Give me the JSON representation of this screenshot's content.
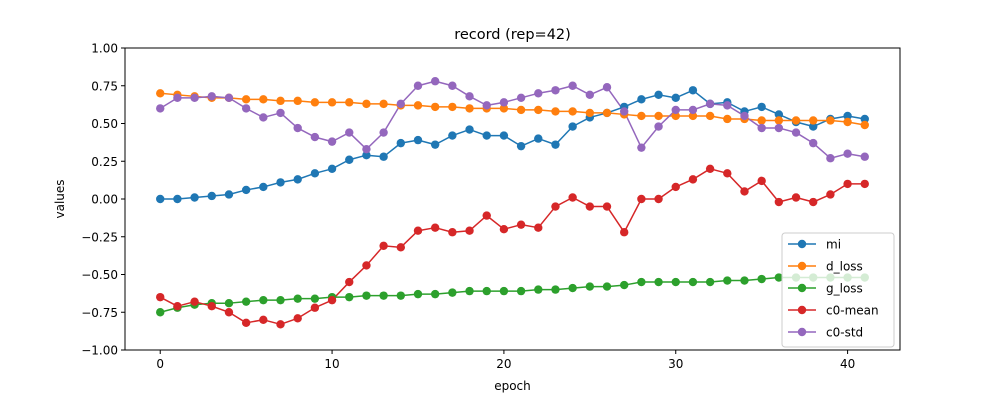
{
  "chart_data": {
    "type": "line",
    "title": "record (rep=42)",
    "xlabel": "epoch",
    "ylabel": "values",
    "xlim": [
      -2.05,
      43.05
    ],
    "ylim": [
      -1.0,
      1.0
    ],
    "xticks": [
      0,
      10,
      20,
      30,
      40
    ],
    "yticks": [
      -1.0,
      -0.75,
      -0.5,
      -0.25,
      0.0,
      0.25,
      0.5,
      0.75,
      1.0
    ],
    "ytick_labels": [
      "−1.00",
      "−0.75",
      "−0.50",
      "−0.25",
      "0.00",
      "0.25",
      "0.50",
      "0.75",
      "1.00"
    ],
    "xtick_labels": [
      "0",
      "10",
      "20",
      "30",
      "40"
    ],
    "grid": false,
    "legend_position": "lower-right",
    "x": [
      0,
      1,
      2,
      3,
      4,
      5,
      6,
      7,
      8,
      9,
      10,
      11,
      12,
      13,
      14,
      15,
      16,
      17,
      18,
      19,
      20,
      21,
      22,
      23,
      24,
      25,
      26,
      27,
      28,
      29,
      30,
      31,
      32,
      33,
      34,
      35,
      36,
      37,
      38,
      39,
      40,
      41
    ],
    "series": [
      {
        "name": "mi",
        "color": "#1f77b4",
        "values": [
          0.0,
          0.0,
          0.01,
          0.02,
          0.03,
          0.06,
          0.08,
          0.11,
          0.13,
          0.17,
          0.2,
          0.26,
          0.29,
          0.28,
          0.37,
          0.39,
          0.36,
          0.42,
          0.46,
          0.42,
          0.42,
          0.35,
          0.4,
          0.36,
          0.48,
          0.54,
          0.57,
          0.61,
          0.66,
          0.69,
          0.67,
          0.72,
          0.63,
          0.64,
          0.58,
          0.61,
          0.56,
          0.51,
          0.48,
          0.53,
          0.55,
          0.53
        ]
      },
      {
        "name": "d_loss",
        "color": "#ff7f0e",
        "values": [
          0.7,
          0.69,
          0.68,
          0.67,
          0.67,
          0.66,
          0.66,
          0.65,
          0.65,
          0.64,
          0.64,
          0.64,
          0.63,
          0.63,
          0.62,
          0.62,
          0.61,
          0.61,
          0.6,
          0.6,
          0.6,
          0.59,
          0.59,
          0.58,
          0.58,
          0.57,
          0.57,
          0.56,
          0.55,
          0.55,
          0.55,
          0.55,
          0.55,
          0.53,
          0.53,
          0.52,
          0.52,
          0.52,
          0.52,
          0.52,
          0.51,
          0.49
        ]
      },
      {
        "name": "g_loss",
        "color": "#2ca02c",
        "values": [
          -0.75,
          -0.72,
          -0.7,
          -0.69,
          -0.69,
          -0.68,
          -0.67,
          -0.67,
          -0.66,
          -0.66,
          -0.65,
          -0.65,
          -0.64,
          -0.64,
          -0.64,
          -0.63,
          -0.63,
          -0.62,
          -0.61,
          -0.61,
          -0.61,
          -0.61,
          -0.6,
          -0.6,
          -0.59,
          -0.58,
          -0.58,
          -0.57,
          -0.55,
          -0.55,
          -0.55,
          -0.55,
          -0.55,
          -0.54,
          -0.54,
          -0.53,
          -0.52,
          -0.52,
          -0.52,
          -0.52,
          -0.52,
          -0.52
        ]
      },
      {
        "name": "c0-mean",
        "color": "#d62728",
        "values": [
          -0.65,
          -0.71,
          -0.68,
          -0.71,
          -0.75,
          -0.82,
          -0.8,
          -0.83,
          -0.79,
          -0.72,
          -0.67,
          -0.55,
          -0.44,
          -0.31,
          -0.32,
          -0.21,
          -0.19,
          -0.22,
          -0.21,
          -0.11,
          -0.2,
          -0.17,
          -0.19,
          -0.05,
          0.01,
          -0.05,
          -0.05,
          -0.22,
          0.0,
          0.0,
          0.08,
          0.13,
          0.2,
          0.17,
          0.05,
          0.12,
          -0.02,
          0.01,
          -0.02,
          0.03,
          0.1,
          0.1
        ]
      },
      {
        "name": "c0-std",
        "color": "#9467bd",
        "values": [
          0.6,
          0.67,
          0.67,
          0.68,
          0.67,
          0.6,
          0.54,
          0.57,
          0.47,
          0.41,
          0.38,
          0.44,
          0.33,
          0.44,
          0.63,
          0.75,
          0.78,
          0.75,
          0.68,
          0.62,
          0.64,
          0.67,
          0.7,
          0.72,
          0.75,
          0.69,
          0.74,
          0.58,
          0.34,
          0.48,
          0.59,
          0.59,
          0.63,
          0.62,
          0.55,
          0.47,
          0.47,
          0.44,
          0.37,
          0.27,
          0.3,
          0.28
        ]
      }
    ]
  }
}
